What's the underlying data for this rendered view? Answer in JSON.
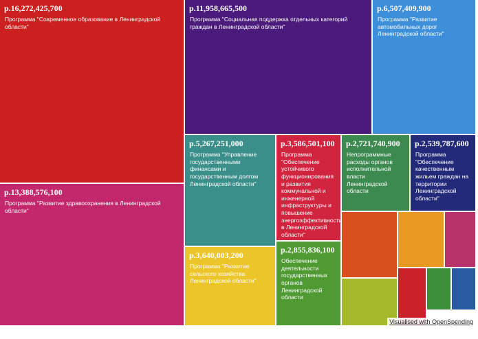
{
  "chart_data": {
    "type": "treemap",
    "currency_prefix": "p.",
    "tiles": [
      {
        "amount": "p.16,272,425,700",
        "value": 16272425700,
        "label": "Программа \"Современное образование в Ленинградской области\"",
        "color": "#cc1f1f"
      },
      {
        "amount": "p.11,958,665,500",
        "value": 11958665500,
        "label": "Программа \"Социальная поддержка отдельных категорий граждан в Ленинградской области\"",
        "color": "#4a1b7a"
      },
      {
        "amount": "p.6,507,409,900",
        "value": 6507409900,
        "label": "Программа \"Развитие автомобильных дорог Ленинградской области\"",
        "color": "#3d8fd9"
      },
      {
        "amount": "p.13,388,576,100",
        "value": 13388576100,
        "label": "Программа \"Развитие здравоохранения в Ленинградской области\"",
        "color": "#c2286b"
      },
      {
        "amount": "p.5,267,251,000",
        "value": 5267251000,
        "label": "Программа \"Управление государственными финансами и государственным долгом Ленинградской области\"",
        "color": "#3a8f8a"
      },
      {
        "amount": "p.3,586,501,100",
        "value": 3586501100,
        "label": "Программа \"Обеспечение устойчивого функционирования и развития коммунальной и инженерной инфраструктуры и повышение энергоэффективности в Ленинградской области\"",
        "color": "#d1243e"
      },
      {
        "amount": "p.2,721,740,900",
        "value": 2721740900,
        "label": "Непрограммные расходы органов исполнительной власти Ленинградской области",
        "color": "#3d8a50"
      },
      {
        "amount": "p.2,539,787,600",
        "value": 2539787600,
        "label": "Программа \"Обеспечение качественным жильем граждан на территории Ленинградской области\"",
        "color": "#242a7a"
      },
      {
        "amount": "p.3,640,003,200",
        "value": 3640003200,
        "label": "Программа \"Развитие сельского хозяйства Ленинградской области\"",
        "color": "#ecc52a"
      },
      {
        "amount": "p.2,855,836,100",
        "value": 2855836100,
        "label": "Обеспечение деятельности государственных органов Ленинградской области",
        "color": "#4f9a32"
      },
      {
        "amount": "",
        "value": null,
        "label": "",
        "color": "#d9501f"
      },
      {
        "amount": "",
        "value": null,
        "label": "",
        "color": "#e89a22"
      },
      {
        "amount": "",
        "value": null,
        "label": "",
        "color": "#b9336b"
      },
      {
        "amount": "",
        "value": null,
        "label": "",
        "color": "#a3b82a"
      },
      {
        "amount": "",
        "value": null,
        "label": "",
        "color": "#c9202a"
      },
      {
        "amount": "",
        "value": null,
        "label": "",
        "color": "#3e8f3a"
      },
      {
        "amount": "",
        "value": null,
        "label": "",
        "color": "#2a5aa0"
      }
    ]
  },
  "credit": "Visualised with OpenSpending"
}
